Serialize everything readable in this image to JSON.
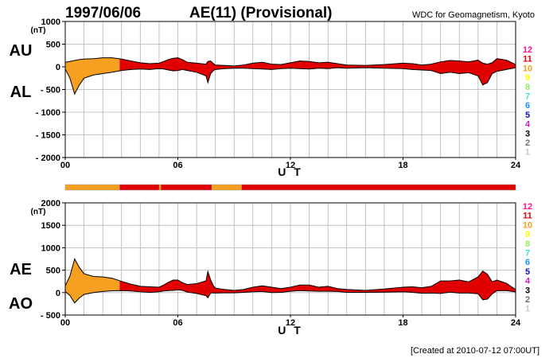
{
  "header": {
    "date": "1997/06/06",
    "title": "AE(11) (Provisional)",
    "source": "WDC for Geomagnetism, Kyoto"
  },
  "footer": {
    "created": "[Created at 2010-07-12 07:00UT]"
  },
  "colors": {
    "orange": "#f5a020",
    "red": "#f03a0e",
    "line": "#000000",
    "grid": "#b4b4b4"
  },
  "level_legend": {
    "labels": [
      "12",
      "11",
      "10",
      "9",
      "8",
      "7",
      "6",
      "5",
      "4",
      "3",
      "2",
      "1"
    ],
    "colors": [
      "#ff1493",
      "#e00000",
      "#f5a020",
      "#ffff00",
      "#90ee60",
      "#40e0d0",
      "#1e90ff",
      "#1010c0",
      "#d020d0",
      "#000000",
      "#707070",
      "#c8c8c8"
    ]
  },
  "chart_data": [
    {
      "type": "area",
      "name": "AU/AL panel",
      "side_labels": [
        "AU",
        "AL"
      ],
      "unit": "(nT)",
      "xlabel": "U T",
      "xlim": [
        0,
        24
      ],
      "ylim": [
        -2000,
        1000
      ],
      "y_ticks": [
        1000,
        500,
        0,
        -500,
        -1000,
        -1500,
        -2000
      ],
      "y_tick_labels": [
        "1000",
        "500",
        "0",
        "- 500",
        "- 1000",
        "- 1500",
        "- 2000"
      ],
      "x_ticks": [
        0,
        6,
        12,
        18,
        24
      ],
      "x_tick_labels": [
        "00",
        "06",
        "12",
        "18",
        "24"
      ],
      "grid": true,
      "x": [
        0,
        0.25,
        0.5,
        0.75,
        1,
        1.5,
        2,
        2.5,
        3,
        3.5,
        4,
        4.5,
        5,
        5.25,
        5.5,
        5.75,
        6,
        6.25,
        6.5,
        7,
        7.5,
        7.6,
        7.75,
        7.9,
        8,
        8.5,
        9,
        9.5,
        10,
        10.5,
        11,
        11.5,
        12,
        12.5,
        13,
        13.5,
        14,
        14.5,
        15,
        16,
        17,
        18,
        18.5,
        19,
        19.5,
        20,
        20.5,
        21,
        21.5,
        22,
        22.25,
        22.5,
        22.75,
        23,
        23.5,
        24
      ],
      "series": [
        {
          "name": "AU",
          "values": [
            100,
            120,
            140,
            160,
            170,
            180,
            200,
            200,
            170,
            130,
            90,
            70,
            80,
            120,
            160,
            190,
            200,
            160,
            100,
            80,
            60,
            120,
            130,
            70,
            40,
            30,
            20,
            40,
            80,
            100,
            60,
            50,
            90,
            130,
            120,
            90,
            100,
            70,
            40,
            30,
            50,
            80,
            70,
            40,
            60,
            110,
            140,
            130,
            110,
            150,
            80,
            60,
            90,
            180,
            150,
            50
          ]
        },
        {
          "name": "AL",
          "values": [
            -50,
            -250,
            -600,
            -400,
            -250,
            -180,
            -150,
            -120,
            -80,
            -60,
            -50,
            -60,
            -40,
            -50,
            -70,
            -90,
            -80,
            -60,
            -80,
            -120,
            -200,
            -350,
            -150,
            -80,
            -60,
            -40,
            -30,
            -30,
            -40,
            -50,
            -60,
            -40,
            -30,
            -40,
            -50,
            -30,
            -40,
            -20,
            -30,
            -20,
            -30,
            -40,
            -60,
            -70,
            -80,
            -150,
            -120,
            -150,
            -130,
            -200,
            -400,
            -350,
            -150,
            -100,
            -60,
            -20
          ]
        }
      ],
      "segment_levels": [
        {
          "from": 0,
          "to": 2.9,
          "level": "10"
        },
        {
          "from": 2.9,
          "to": 24,
          "level": "11"
        }
      ]
    },
    {
      "type": "area",
      "name": "AE/AO panel",
      "side_labels": [
        "AE",
        "AO"
      ],
      "unit": "(nT)",
      "xlabel": "U T",
      "xlim": [
        0,
        24
      ],
      "ylim": [
        -500,
        2000
      ],
      "y_ticks": [
        2000,
        1500,
        1000,
        500,
        0,
        -500
      ],
      "y_tick_labels": [
        "2000",
        "1500",
        "1000",
        "500",
        "0",
        "- 500"
      ],
      "x_ticks": [
        0,
        6,
        12,
        18,
        24
      ],
      "x_tick_labels": [
        "00",
        "06",
        "12",
        "18",
        "24"
      ],
      "grid": true,
      "x": [
        0,
        0.25,
        0.5,
        0.75,
        1,
        1.5,
        2,
        2.5,
        3,
        3.5,
        4,
        4.5,
        5,
        5.25,
        5.5,
        5.75,
        6,
        6.25,
        6.5,
        7,
        7.5,
        7.6,
        7.75,
        7.9,
        8,
        8.5,
        9,
        9.5,
        10,
        10.5,
        11,
        11.5,
        12,
        12.5,
        13,
        13.5,
        14,
        14.5,
        15,
        16,
        17,
        18,
        18.5,
        19,
        19.5,
        20,
        20.5,
        21,
        21.5,
        22,
        22.25,
        22.5,
        22.75,
        23,
        23.5,
        24
      ],
      "series": [
        {
          "name": "AE",
          "values": [
            150,
            370,
            750,
            560,
            420,
            360,
            350,
            320,
            250,
            190,
            140,
            130,
            120,
            170,
            230,
            280,
            280,
            220,
            180,
            200,
            260,
            470,
            280,
            150,
            100,
            70,
            50,
            70,
            120,
            150,
            120,
            90,
            120,
            170,
            170,
            120,
            140,
            90,
            70,
            50,
            80,
            120,
            130,
            110,
            140,
            260,
            260,
            280,
            240,
            350,
            480,
            410,
            240,
            280,
            210,
            70
          ]
        },
        {
          "name": "AO",
          "values": [
            25,
            -65,
            -230,
            -120,
            -40,
            0,
            25,
            40,
            45,
            35,
            20,
            5,
            20,
            35,
            45,
            50,
            60,
            50,
            10,
            -20,
            -70,
            -115,
            -10,
            -5,
            -10,
            -5,
            -5,
            5,
            20,
            25,
            0,
            5,
            30,
            45,
            35,
            30,
            30,
            25,
            5,
            5,
            10,
            20,
            5,
            -15,
            -10,
            -20,
            10,
            -10,
            -10,
            -25,
            -160,
            -145,
            -30,
            40,
            45,
            15
          ]
        }
      ],
      "segment_levels": [
        {
          "from": 0,
          "to": 2.9,
          "level": "10"
        },
        {
          "from": 2.9,
          "to": 24,
          "level": "11"
        }
      ]
    }
  ],
  "station_bar": [
    {
      "from": 0,
      "to": 2.9,
      "level": "10"
    },
    {
      "from": 2.9,
      "to": 5.0,
      "level": "11"
    },
    {
      "from": 5.0,
      "to": 5.1,
      "level": "10"
    },
    {
      "from": 5.1,
      "to": 7.8,
      "level": "11"
    },
    {
      "from": 7.8,
      "to": 9.4,
      "level": "10"
    },
    {
      "from": 9.4,
      "to": 24,
      "level": "11"
    }
  ]
}
